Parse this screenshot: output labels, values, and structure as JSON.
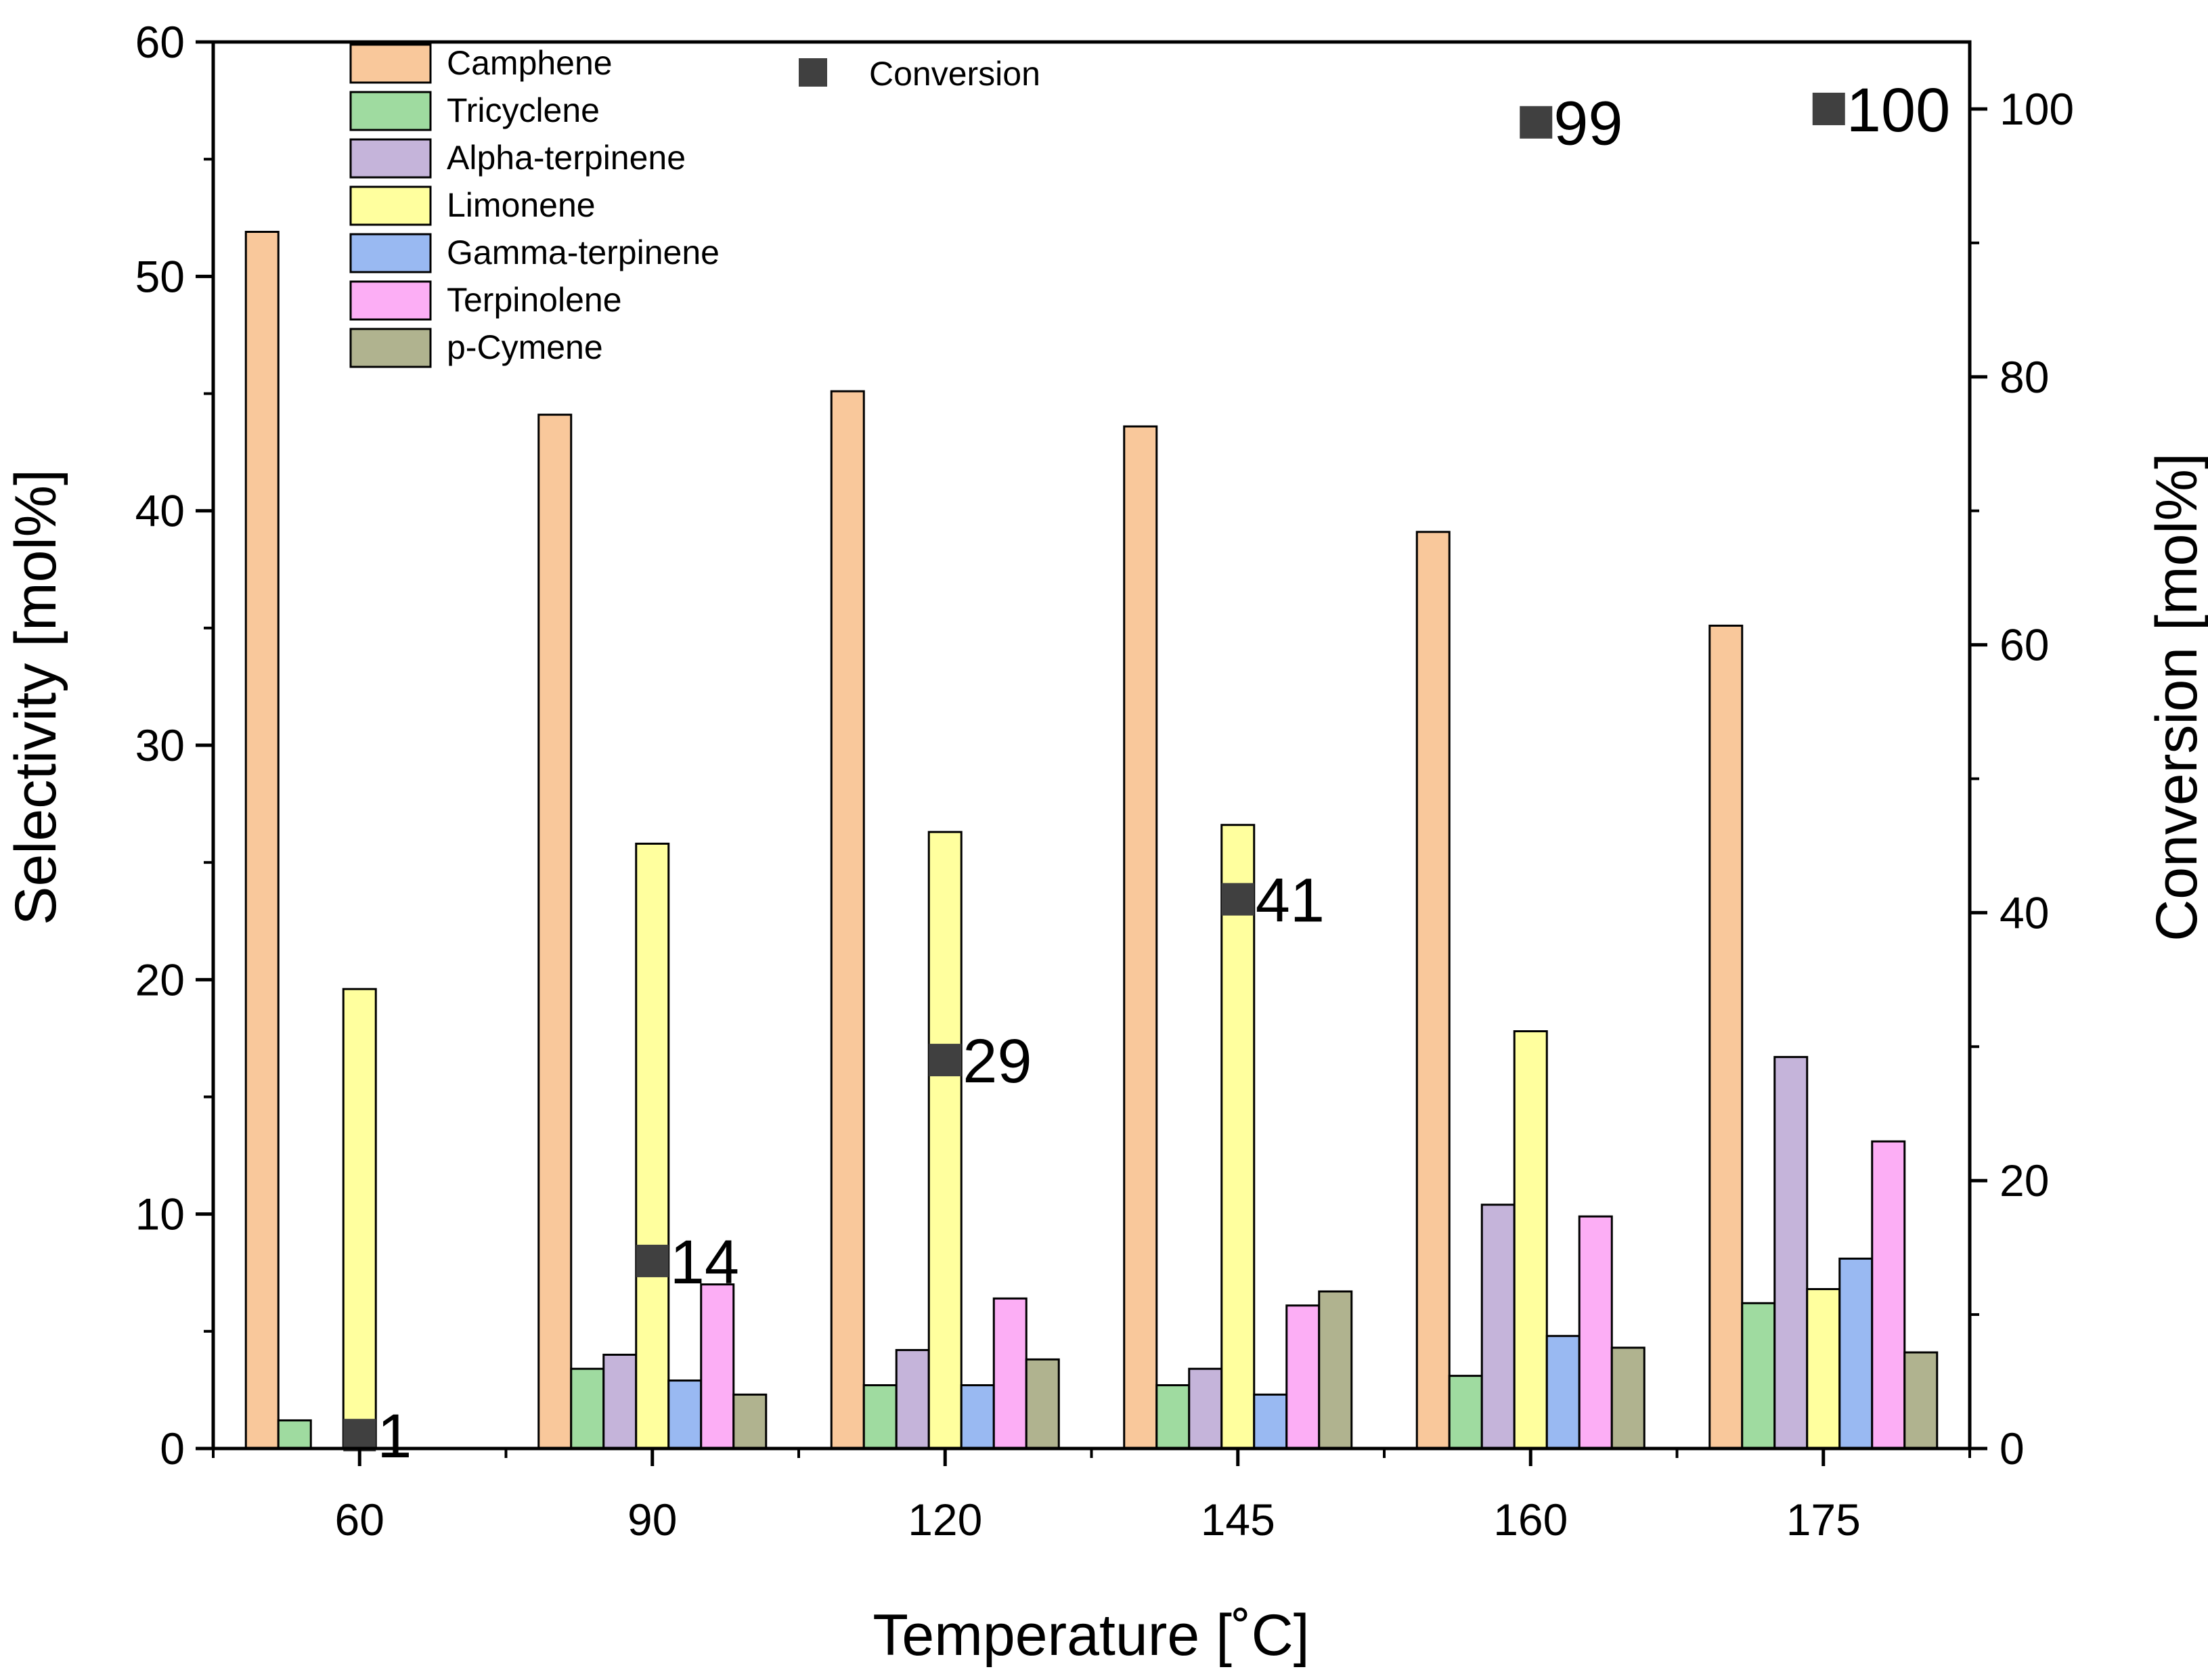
{
  "chart_data": {
    "type": "bar",
    "title": "",
    "xlabel": "Temperature [˚C]",
    "ylabel": "Selectivity [mol%]",
    "y2label": "Conversion [mol%]",
    "ylim": [
      0,
      60
    ],
    "y2lim": [
      0,
      105
    ],
    "yticks": [
      0,
      10,
      20,
      30,
      40,
      50,
      60
    ],
    "y2ticks": [
      0,
      20,
      40,
      60,
      80,
      100
    ],
    "categories": [
      "60",
      "90",
      "120",
      "145",
      "160",
      "175"
    ],
    "series": [
      {
        "name": "Camphene",
        "color": "#f9c89b",
        "values": [
          51.9,
          44.1,
          45.1,
          43.6,
          39.1,
          35.1
        ]
      },
      {
        "name": "Tricyclene",
        "color": "#9fdba0",
        "values": [
          1.2,
          3.4,
          2.7,
          2.7,
          3.1,
          6.2
        ]
      },
      {
        "name": "Alpha-terpinene",
        "color": "#c5b4da",
        "values": [
          0,
          4.0,
          4.2,
          3.4,
          10.4,
          16.7
        ]
      },
      {
        "name": "Limonene",
        "color": "#ffff9e",
        "values": [
          19.6,
          25.8,
          26.3,
          26.6,
          17.8,
          6.8
        ]
      },
      {
        "name": "Gamma-terpinene",
        "color": "#99b9f2",
        "values": [
          0,
          2.9,
          2.7,
          2.3,
          4.8,
          8.1
        ]
      },
      {
        "name": "Terpinolene",
        "color": "#fcaef5",
        "values": [
          0,
          7.0,
          6.4,
          6.1,
          9.9,
          13.1
        ]
      },
      {
        "name": "p-Cymene",
        "color": "#b0b38f",
        "values": [
          0,
          2.3,
          3.8,
          6.7,
          4.3,
          4.1
        ]
      }
    ],
    "conversion": {
      "name": "Conversion",
      "color": "#404040",
      "axis": "right",
      "values": [
        1,
        14,
        29,
        41,
        99,
        100
      ],
      "labels": [
        "1",
        "14",
        "29",
        "41",
        "99",
        "100"
      ]
    },
    "legend_position": "top-left"
  }
}
